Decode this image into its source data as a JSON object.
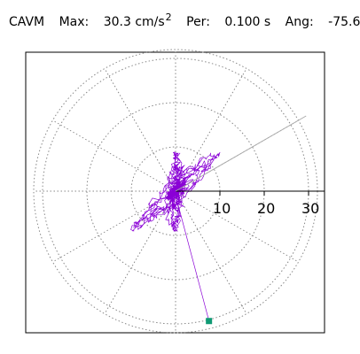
{
  "header": {
    "station": "CAVM",
    "max_label": "Max:",
    "max_value": "30.3 cm/s",
    "max_unit_sup": "2",
    "per_label": "Per:",
    "per_value": "0.100 s",
    "ang_label": "Ang:",
    "ang_value": "-75.6"
  },
  "chart_data": {
    "type": "polar-orbit",
    "rmax": 32,
    "ring_values": [
      10,
      20,
      30
    ],
    "tick_labels": [
      "10",
      "20",
      "30"
    ],
    "spoke_angles_deg": [
      0,
      30,
      60,
      90,
      120,
      150,
      180,
      210,
      240,
      270,
      300,
      330
    ],
    "max_magnitude": 30.3,
    "max_angle_deg": -75.6,
    "direction_line_angle_deg": 30,
    "grid": true,
    "colors": {
      "trace": "#8a00d6",
      "grid": "#888888",
      "axis": "#000000",
      "marker": "#0f9a74"
    }
  }
}
